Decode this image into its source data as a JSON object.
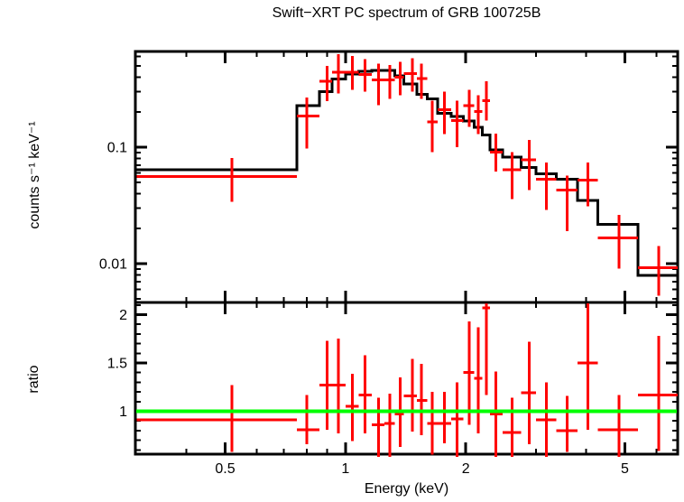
{
  "title": "Swift−XRT PC spectrum of GRB 100725B",
  "axes": {
    "x_label": "Energy (keV)",
    "x_range": [
      0.298,
      6.78
    ],
    "x_major_ticks": [
      {
        "value": 0.5,
        "label": "0.5"
      },
      {
        "value": 1,
        "label": "1"
      },
      {
        "value": 2,
        "label": "2"
      },
      {
        "value": 5,
        "label": "5"
      }
    ],
    "x_minor_ticks": [
      0.4,
      0.6,
      0.7,
      0.8,
      0.9,
      3,
      4,
      6
    ],
    "spectrum_y_label": "counts s⁻¹ keV⁻¹",
    "spectrum_y_range": [
      0.00464,
      0.664
    ],
    "spectrum_y_major_ticks": [
      {
        "value": 0.1,
        "label": "0.1"
      },
      {
        "value": 0.01,
        "label": "0.01"
      }
    ],
    "spectrum_y_minor_ticks": [
      0.005,
      0.006,
      0.007,
      0.008,
      0.009,
      0.02,
      0.03,
      0.04,
      0.05,
      0.06,
      0.07,
      0.08,
      0.09,
      0.2,
      0.3,
      0.4,
      0.5,
      0.6
    ],
    "ratio_y_label": "ratio",
    "ratio_y_range": [
      0.556,
      2.126
    ],
    "ratio_y_major_ticks": [
      {
        "value": 1,
        "label": "1"
      },
      {
        "value": 1.5,
        "label": "1.5"
      },
      {
        "value": 2,
        "label": "2"
      }
    ],
    "ratio_y_minor_ticks": [
      0.6,
      0.7,
      0.8,
      0.9,
      1.1,
      1.2,
      1.3,
      1.4,
      1.6,
      1.7,
      1.8,
      1.9,
      2.1
    ]
  },
  "colors": {
    "data": "#ff0000",
    "model": "#000000",
    "reference": "#00ff00",
    "frame": "#000000",
    "background": "#ffffff",
    "text": "#000000"
  },
  "chart_data": {
    "type": "scatter",
    "title": "Swift−XRT PC spectrum of GRB 100725B",
    "xlabel": "Energy (keV)",
    "xscale": "log",
    "panels": [
      {
        "name": "spectrum",
        "ylabel": "counts s⁻¹ keV⁻¹",
        "yscale": "log",
        "ylim": [
          0.00464,
          0.664
        ],
        "point_format": [
          "energy_keV",
          "energy_lo",
          "energy_hi",
          "rate",
          "rate_lo",
          "rate_hi"
        ],
        "points": [
          [
            0.52,
            0.3,
            0.755,
            0.056,
            0.034,
            0.081
          ],
          [
            0.8,
            0.755,
            0.86,
            0.186,
            0.097,
            0.266
          ],
          [
            0.9,
            0.86,
            0.925,
            0.368,
            0.248,
            0.5
          ],
          [
            0.96,
            0.925,
            1.0,
            0.44,
            0.29,
            0.63
          ],
          [
            1.04,
            1.0,
            1.08,
            0.44,
            0.31,
            0.61
          ],
          [
            1.12,
            1.08,
            1.165,
            0.42,
            0.3,
            0.57
          ],
          [
            1.21,
            1.165,
            1.25,
            0.38,
            0.23,
            0.52
          ],
          [
            1.29,
            1.25,
            1.33,
            0.38,
            0.26,
            0.51
          ],
          [
            1.37,
            1.33,
            1.4,
            0.4,
            0.28,
            0.54
          ],
          [
            1.47,
            1.4,
            1.51,
            0.43,
            0.3,
            0.58
          ],
          [
            1.55,
            1.51,
            1.6,
            0.39,
            0.26,
            0.52
          ],
          [
            1.65,
            1.6,
            1.7,
            0.165,
            0.091,
            0.25
          ],
          [
            1.77,
            1.7,
            1.84,
            0.21,
            0.13,
            0.3
          ],
          [
            1.9,
            1.84,
            1.97,
            0.17,
            0.1,
            0.25
          ],
          [
            2.04,
            1.97,
            2.1,
            0.228,
            0.15,
            0.31
          ],
          [
            2.15,
            2.1,
            2.2,
            0.203,
            0.13,
            0.28
          ],
          [
            2.25,
            2.2,
            2.3,
            0.25,
            0.17,
            0.37
          ],
          [
            2.38,
            2.3,
            2.47,
            0.091,
            0.062,
            0.131
          ],
          [
            2.61,
            2.47,
            2.75,
            0.064,
            0.036,
            0.091
          ],
          [
            2.88,
            2.75,
            3.0,
            0.078,
            0.043,
            0.115
          ],
          [
            3.18,
            3.0,
            3.37,
            0.053,
            0.029,
            0.074
          ],
          [
            3.59,
            3.37,
            3.81,
            0.043,
            0.019,
            0.057
          ],
          [
            4.04,
            3.81,
            4.28,
            0.052,
            0.031,
            0.074
          ],
          [
            4.83,
            4.28,
            5.39,
            0.0167,
            0.0091,
            0.0262
          ],
          [
            6.08,
            5.39,
            6.78,
            0.0092,
            0.0053,
            0.0141
          ]
        ],
        "model_bin_format": [
          "energy_lo",
          "energy_hi",
          "rate"
        ],
        "model_bins": [
          [
            0.3,
            0.755,
            0.064
          ],
          [
            0.755,
            0.86,
            0.228
          ],
          [
            0.86,
            0.925,
            0.3
          ],
          [
            0.925,
            1.0,
            0.385
          ],
          [
            1.0,
            1.08,
            0.425
          ],
          [
            1.08,
            1.165,
            0.45
          ],
          [
            1.165,
            1.25,
            0.458
          ],
          [
            1.25,
            1.33,
            0.455
          ],
          [
            1.33,
            1.4,
            0.41
          ],
          [
            1.4,
            1.51,
            0.35
          ],
          [
            1.51,
            1.6,
            0.285
          ],
          [
            1.6,
            1.7,
            0.26
          ],
          [
            1.7,
            1.84,
            0.195
          ],
          [
            1.84,
            1.97,
            0.183
          ],
          [
            1.97,
            2.1,
            0.168
          ],
          [
            2.1,
            2.2,
            0.148
          ],
          [
            2.2,
            2.3,
            0.127
          ],
          [
            2.3,
            2.47,
            0.095
          ],
          [
            2.47,
            2.75,
            0.082
          ],
          [
            2.75,
            3.0,
            0.067
          ],
          [
            3.0,
            3.37,
            0.059
          ],
          [
            3.37,
            3.81,
            0.053
          ],
          [
            3.81,
            4.28,
            0.035
          ],
          [
            4.28,
            5.39,
            0.0218
          ],
          [
            5.39,
            6.78,
            0.0079
          ]
        ]
      },
      {
        "name": "ratio",
        "ylabel": "ratio",
        "yscale": "linear",
        "ylim": [
          0.556,
          2.126
        ],
        "reference_line": 1.0,
        "point_format": [
          "energy_keV",
          "energy_lo",
          "energy_hi",
          "ratio",
          "ratio_lo",
          "ratio_hi"
        ],
        "points": [
          [
            0.52,
            0.3,
            0.755,
            0.91,
            0.58,
            1.27
          ],
          [
            0.8,
            0.755,
            0.86,
            0.81,
            0.66,
            1.17
          ],
          [
            0.9,
            0.86,
            0.925,
            1.27,
            0.81,
            1.73
          ],
          [
            0.96,
            0.925,
            1.0,
            1.27,
            0.77,
            1.75
          ],
          [
            1.04,
            1.0,
            1.08,
            1.05,
            0.69,
            1.39
          ],
          [
            1.12,
            1.08,
            1.165,
            1.17,
            0.77,
            1.58
          ],
          [
            1.21,
            1.165,
            1.25,
            0.86,
            0.5,
            1.14
          ],
          [
            1.29,
            1.25,
            1.33,
            0.875,
            0.5,
            1.18
          ],
          [
            1.37,
            1.33,
            1.4,
            0.97,
            0.63,
            1.35
          ],
          [
            1.47,
            1.4,
            1.51,
            1.16,
            0.79,
            1.54
          ],
          [
            1.55,
            1.51,
            1.6,
            1.11,
            0.75,
            1.49
          ],
          [
            1.65,
            1.6,
            1.7,
            0.875,
            0.55,
            1.2
          ],
          [
            1.77,
            1.7,
            1.84,
            0.875,
            0.67,
            1.2
          ],
          [
            1.9,
            1.84,
            1.97,
            0.92,
            0.5,
            1.3
          ],
          [
            2.04,
            1.97,
            2.1,
            1.4,
            0.86,
            1.93
          ],
          [
            2.15,
            2.1,
            2.2,
            1.34,
            0.77,
            1.87
          ],
          [
            2.25,
            2.2,
            2.3,
            2.07,
            1.17,
            2.3
          ],
          [
            2.38,
            2.3,
            2.47,
            0.97,
            0.5,
            1.41
          ],
          [
            2.61,
            2.47,
            2.75,
            0.78,
            0.45,
            1.14
          ],
          [
            2.88,
            2.75,
            3.0,
            1.19,
            0.66,
            1.72
          ],
          [
            3.18,
            3.0,
            3.37,
            0.91,
            0.5,
            1.3
          ],
          [
            3.59,
            3.37,
            3.81,
            0.8,
            0.58,
            1.16
          ],
          [
            4.04,
            3.81,
            4.28,
            1.5,
            0.81,
            2.3
          ],
          [
            4.83,
            4.28,
            5.39,
            0.81,
            0.5,
            1.17
          ],
          [
            6.08,
            5.39,
            6.78,
            1.17,
            0.59,
            1.78
          ]
        ]
      }
    ]
  }
}
